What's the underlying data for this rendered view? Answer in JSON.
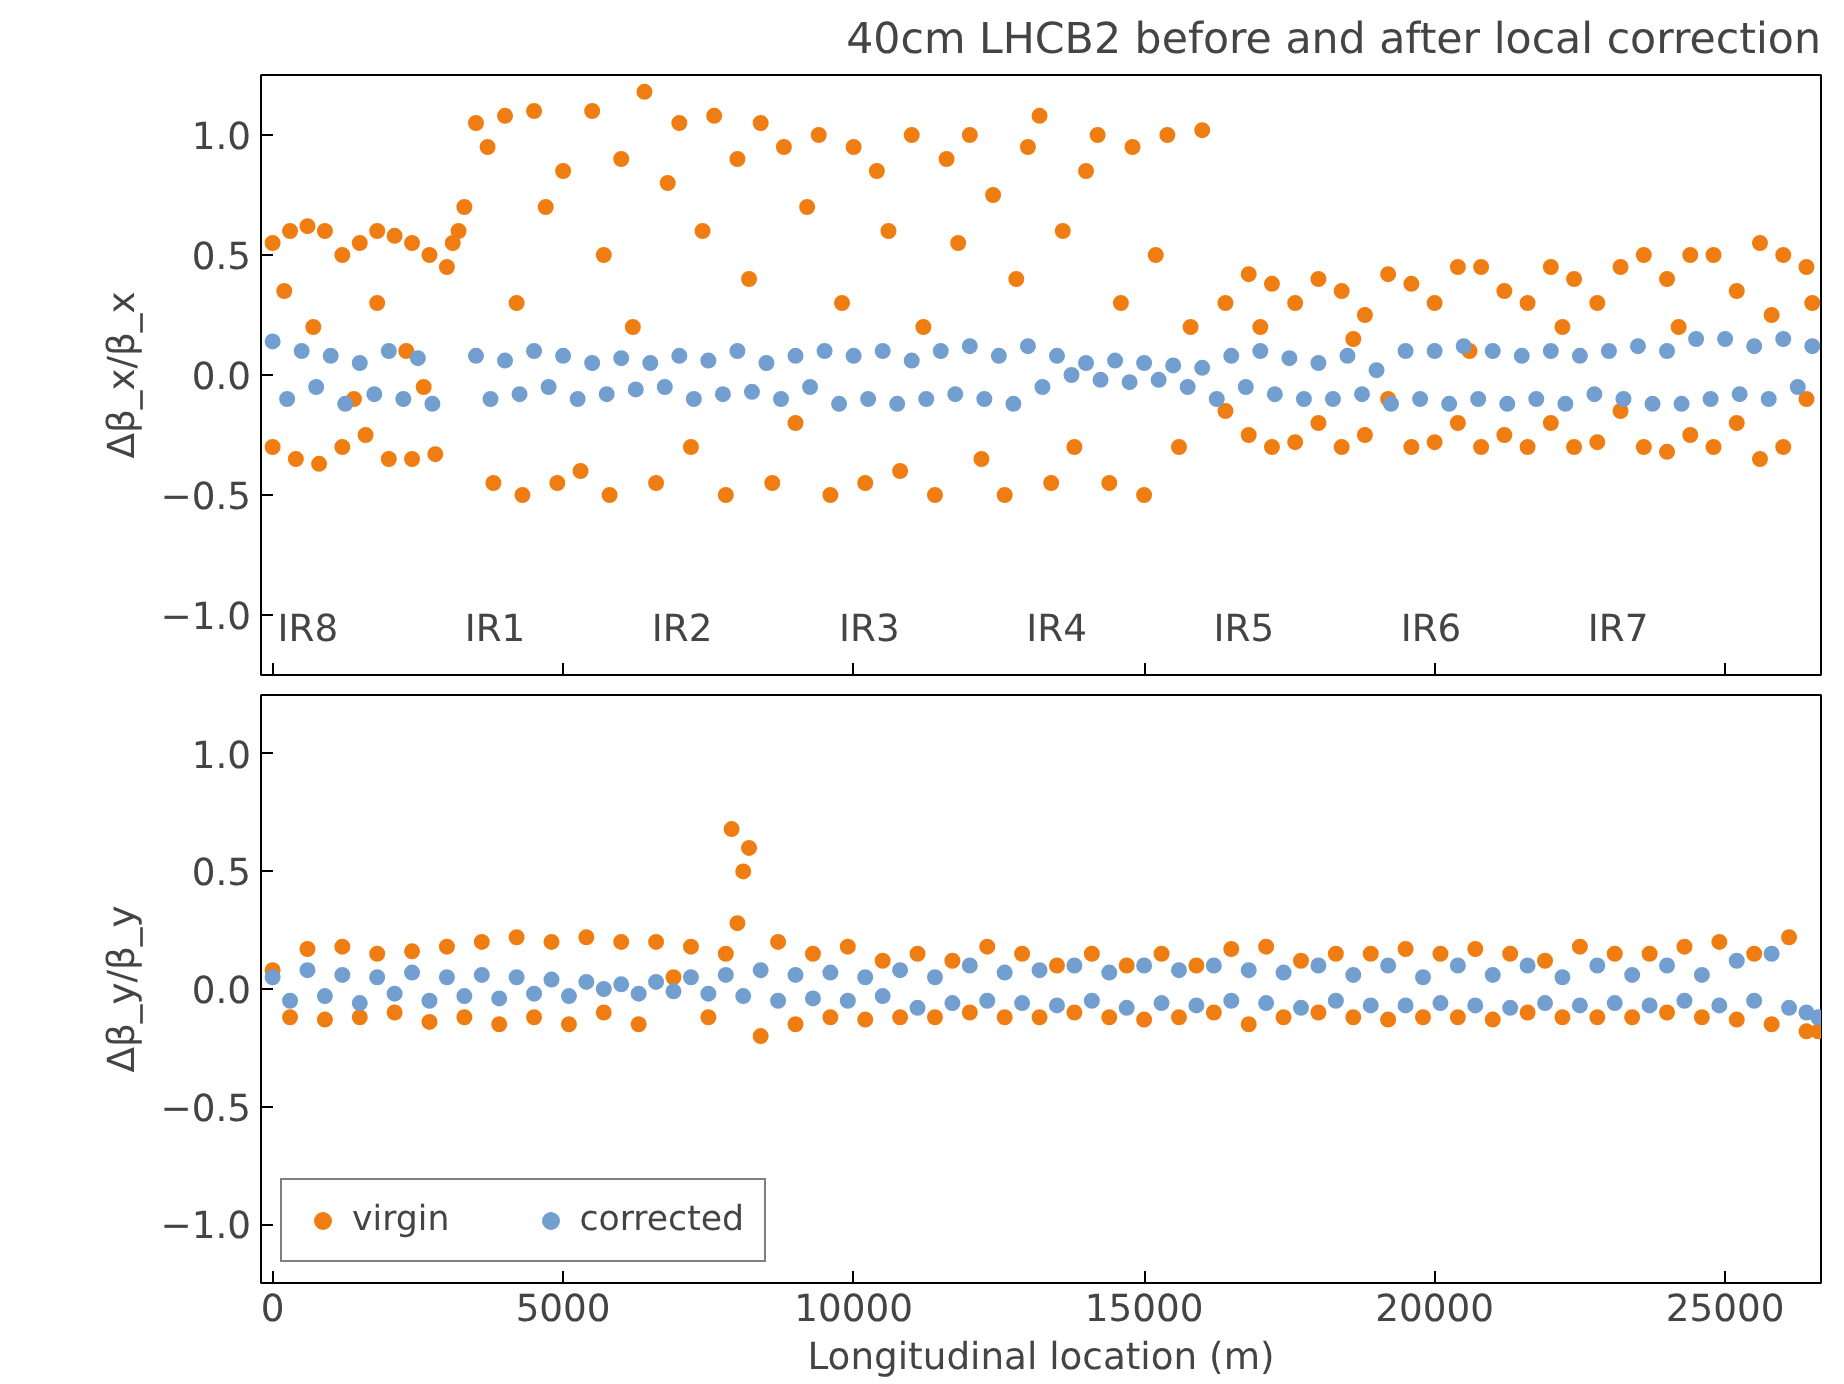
{
  "chart_data": [
    {
      "type": "scatter",
      "title": "40cm LHCB2 before and after local correction",
      "ylabel": "Δβ_x/β_x",
      "xlim": [
        -200,
        26650
      ],
      "ylim": [
        -1.25,
        1.25
      ],
      "xticks": [
        0,
        5000,
        10000,
        15000,
        20000,
        25000
      ],
      "tick_labels": "y",
      "annotations": [
        "IR8",
        "IR1",
        "IR2",
        "IR3",
        "IR4",
        "IR5",
        "IR6",
        "IR7"
      ],
      "yticks": [
        {
          "value": -1.0,
          "label": "−1.0"
        },
        {
          "value": -0.5,
          "label": "−0.5"
        },
        {
          "value": 0.0,
          "label": "0.0"
        },
        0.5,
        {
          "value": 1.0,
          "label": "1.0"
        }
      ],
      "grid": false,
      "legend": false,
      "marker": "circle",
      "series": [
        {
          "color": "#ef7d12",
          "x": [
            0,
            0,
            200,
            300,
            400,
            600,
            700,
            800,
            900,
            1200,
            1200,
            1400,
            1500,
            1600,
            1800,
            1800,
            2000,
            2100,
            2300,
            2400,
            2400,
            2600,
            2700,
            2800,
            3000,
            3100,
            3200,
            3300,
            3500,
            3700,
            3800,
            4000,
            4200,
            4300,
            4500,
            4700,
            4900,
            5000,
            5300,
            5500,
            5700,
            5800,
            6000,
            6200,
            6400,
            6600,
            6800,
            7000,
            7200,
            7400,
            7600,
            7800,
            8000,
            8200,
            8400,
            8600,
            8800,
            9000,
            9200,
            9400,
            9600,
            9800,
            10000,
            10200,
            10400,
            10600,
            10800,
            11000,
            11200,
            11400,
            11600,
            11800,
            12000,
            12200,
            12400,
            12600,
            12800,
            13000,
            13200,
            13400,
            13600,
            13800,
            14000,
            14200,
            14400,
            14600,
            14800,
            15000,
            15200,
            15400,
            15600,
            15800,
            16000,
            16400,
            16400,
            16800,
            16800,
            17000,
            17200,
            17200,
            17600,
            17600,
            18000,
            18000,
            18400,
            18400,
            18600,
            18800,
            18800,
            19200,
            19200,
            19600,
            19600,
            20000,
            20000,
            20400,
            20400,
            20600,
            20800,
            20800,
            21200,
            21200,
            21600,
            21600,
            22000,
            22000,
            22200,
            22400,
            22400,
            22800,
            22800,
            23200,
            23200,
            23600,
            23600,
            24000,
            24000,
            24200,
            24400,
            24400,
            24800,
            24800,
            25200,
            25200,
            25600,
            25600,
            25800,
            26000,
            26000,
            26400,
            26400,
            26500
          ],
          "values": [
            0.55,
            -0.3,
            0.35,
            0.6,
            -0.35,
            0.62,
            0.2,
            -0.37,
            0.6,
            0.5,
            -0.3,
            -0.1,
            0.55,
            -0.25,
            0.6,
            0.3,
            -0.35,
            0.58,
            0.1,
            0.55,
            -0.35,
            -0.05,
            0.5,
            -0.33,
            0.45,
            0.55,
            0.6,
            0.7,
            1.05,
            0.95,
            -0.45,
            1.08,
            0.3,
            -0.5,
            1.1,
            0.7,
            -0.45,
            0.85,
            -0.4,
            1.1,
            0.5,
            -0.5,
            0.9,
            0.2,
            1.18,
            -0.45,
            0.8,
            1.05,
            -0.3,
            0.6,
            1.08,
            -0.5,
            0.9,
            0.4,
            1.05,
            -0.45,
            0.95,
            -0.2,
            0.7,
            1.0,
            -0.5,
            0.3,
            0.95,
            -0.45,
            0.85,
            0.6,
            -0.4,
            1.0,
            0.2,
            -0.5,
            0.9,
            0.55,
            1.0,
            -0.35,
            0.75,
            -0.5,
            0.4,
            0.95,
            1.08,
            -0.45,
            0.6,
            -0.3,
            0.85,
            1.0,
            -0.45,
            0.3,
            0.95,
            -0.5,
            0.5,
            1.0,
            -0.3,
            0.2,
            1.02,
            0.3,
            -0.15,
            0.42,
            -0.25,
            0.2,
            0.38,
            -0.3,
            0.3,
            -0.28,
            0.4,
            -0.2,
            0.35,
            -0.3,
            0.15,
            0.25,
            -0.25,
            0.42,
            -0.1,
            0.38,
            -0.3,
            0.3,
            -0.28,
            0.45,
            -0.2,
            0.1,
            0.45,
            -0.3,
            0.35,
            -0.25,
            0.3,
            -0.3,
            0.45,
            -0.2,
            0.2,
            0.4,
            -0.3,
            0.3,
            -0.28,
            0.45,
            -0.15,
            0.5,
            -0.3,
            0.4,
            -0.32,
            0.2,
            0.5,
            -0.25,
            0.5,
            -0.3,
            0.35,
            -0.2,
            0.55,
            -0.35,
            0.25,
            0.5,
            -0.3,
            0.45,
            -0.1,
            0.3
          ]
        },
        {
          "color": "#729fcf",
          "x": [
            0,
            250,
            500,
            750,
            1000,
            1250,
            1500,
            1750,
            2000,
            2250,
            2500,
            2750,
            3500,
            3750,
            4000,
            4250,
            4500,
            4750,
            5000,
            5250,
            5500,
            5750,
            6000,
            6250,
            6500,
            6750,
            7000,
            7250,
            7500,
            7750,
            8000,
            8250,
            8500,
            8750,
            9000,
            9250,
            9500,
            9750,
            10000,
            10250,
            10500,
            10750,
            11000,
            11250,
            11500,
            11750,
            12000,
            12250,
            12500,
            12750,
            13000,
            13250,
            13500,
            13750,
            14000,
            14250,
            14500,
            14750,
            15000,
            15250,
            15500,
            15750,
            16000,
            16250,
            16500,
            16750,
            17000,
            17250,
            17500,
            17750,
            18000,
            18250,
            18500,
            18750,
            19000,
            19250,
            19500,
            19750,
            20000,
            20250,
            20500,
            20750,
            21000,
            21250,
            21500,
            21750,
            22000,
            22250,
            22500,
            22750,
            23000,
            23250,
            23500,
            23750,
            24000,
            24250,
            24500,
            24750,
            25000,
            25250,
            25500,
            25750,
            26000,
            26250,
            26500
          ],
          "values": [
            0.14,
            -0.1,
            0.1,
            -0.05,
            0.08,
            -0.12,
            0.05,
            -0.08,
            0.1,
            -0.1,
            0.07,
            -0.12,
            0.08,
            -0.1,
            0.06,
            -0.08,
            0.1,
            -0.05,
            0.08,
            -0.1,
            0.05,
            -0.08,
            0.07,
            -0.06,
            0.05,
            -0.05,
            0.08,
            -0.1,
            0.06,
            -0.08,
            0.1,
            -0.07,
            0.05,
            -0.1,
            0.08,
            -0.05,
            0.1,
            -0.12,
            0.08,
            -0.1,
            0.1,
            -0.12,
            0.06,
            -0.1,
            0.1,
            -0.08,
            0.12,
            -0.1,
            0.08,
            -0.12,
            0.12,
            -0.05,
            0.08,
            0.0,
            0.05,
            -0.02,
            0.06,
            -0.03,
            0.05,
            -0.02,
            0.04,
            -0.05,
            0.03,
            -0.1,
            0.08,
            -0.05,
            0.1,
            -0.08,
            0.07,
            -0.1,
            0.05,
            -0.1,
            0.08,
            -0.08,
            0.02,
            -0.12,
            0.1,
            -0.1,
            0.1,
            -0.12,
            0.12,
            -0.1,
            0.1,
            -0.12,
            0.08,
            -0.1,
            0.1,
            -0.12,
            0.08,
            -0.08,
            0.1,
            -0.1,
            0.12,
            -0.12,
            0.1,
            -0.12,
            0.15,
            -0.1,
            0.15,
            -0.08,
            0.12,
            -0.1,
            0.15,
            -0.05,
            0.12
          ]
        }
      ]
    },
    {
      "type": "scatter",
      "xlabel": "Longitudinal location (m)",
      "ylabel": "Δβ_y/β_y",
      "xlim": [
        -200,
        26650
      ],
      "ylim": [
        -1.25,
        1.25
      ],
      "xticks": [
        0,
        5000,
        10000,
        15000,
        20000,
        25000
      ],
      "yticks": [
        {
          "value": -1.0,
          "label": "−1.0"
        },
        {
          "value": -0.5,
          "label": "−0.5"
        },
        {
          "value": 0.0,
          "label": "0.0"
        },
        0.5,
        {
          "value": 1.0,
          "label": "1.0"
        }
      ],
      "grid": false,
      "legend": "bottom left",
      "marker": "circle",
      "series": [
        {
          "name": "virgin",
          "color": "#ef7d12",
          "x": [
            0,
            300,
            600,
            900,
            1200,
            1500,
            1800,
            2100,
            2400,
            2700,
            3000,
            3300,
            3600,
            3900,
            4200,
            4500,
            4800,
            5100,
            5400,
            5700,
            6000,
            6300,
            6600,
            6900,
            7200,
            7500,
            7800,
            7900,
            8000,
            8100,
            8200,
            8400,
            8700,
            9000,
            9300,
            9600,
            9900,
            10200,
            10500,
            10800,
            11100,
            11400,
            11700,
            12000,
            12300,
            12600,
            12900,
            13200,
            13500,
            13800,
            14100,
            14400,
            14700,
            15000,
            15300,
            15600,
            15900,
            16200,
            16500,
            16800,
            17100,
            17400,
            17700,
            18000,
            18300,
            18600,
            18900,
            19200,
            19500,
            19800,
            20100,
            20400,
            20700,
            21000,
            21300,
            21600,
            21900,
            22200,
            22500,
            22800,
            23100,
            23400,
            23700,
            24000,
            24300,
            24600,
            24900,
            25200,
            25500,
            25800,
            26100,
            26400,
            26600
          ],
          "values": [
            0.08,
            -0.12,
            0.17,
            -0.13,
            0.18,
            -0.12,
            0.15,
            -0.1,
            0.16,
            -0.14,
            0.18,
            -0.12,
            0.2,
            -0.15,
            0.22,
            -0.12,
            0.2,
            -0.15,
            0.22,
            -0.1,
            0.2,
            -0.15,
            0.2,
            0.05,
            0.18,
            -0.12,
            0.15,
            0.68,
            0.28,
            0.5,
            0.6,
            -0.2,
            0.2,
            -0.15,
            0.15,
            -0.12,
            0.18,
            -0.13,
            0.12,
            -0.12,
            0.15,
            -0.12,
            0.12,
            -0.1,
            0.18,
            -0.12,
            0.15,
            -0.12,
            0.1,
            -0.1,
            0.15,
            -0.12,
            0.1,
            -0.13,
            0.15,
            -0.12,
            0.1,
            -0.1,
            0.17,
            -0.15,
            0.18,
            -0.12,
            0.12,
            -0.1,
            0.15,
            -0.12,
            0.15,
            -0.13,
            0.17,
            -0.12,
            0.15,
            -0.12,
            0.17,
            -0.13,
            0.15,
            -0.1,
            0.12,
            -0.12,
            0.18,
            -0.12,
            0.15,
            -0.12,
            0.15,
            -0.1,
            0.18,
            -0.12,
            0.2,
            -0.13,
            0.15,
            -0.15,
            0.22,
            -0.18,
            -0.18
          ]
        },
        {
          "name": "corrected",
          "color": "#729fcf",
          "x": [
            0,
            300,
            600,
            900,
            1200,
            1500,
            1800,
            2100,
            2400,
            2700,
            3000,
            3300,
            3600,
            3900,
            4200,
            4500,
            4800,
            5100,
            5400,
            5700,
            6000,
            6300,
            6600,
            6900,
            7200,
            7500,
            7800,
            8100,
            8400,
            8700,
            9000,
            9300,
            9600,
            9900,
            10200,
            10500,
            10800,
            11100,
            11400,
            11700,
            12000,
            12300,
            12600,
            12900,
            13200,
            13500,
            13800,
            14100,
            14400,
            14700,
            15000,
            15300,
            15600,
            15900,
            16200,
            16500,
            16800,
            17100,
            17400,
            17700,
            18000,
            18300,
            18600,
            18900,
            19200,
            19500,
            19800,
            20100,
            20400,
            20700,
            21000,
            21300,
            21600,
            21900,
            22200,
            22500,
            22800,
            23100,
            23400,
            23700,
            24000,
            24300,
            24600,
            24900,
            25200,
            25500,
            25800,
            26100,
            26400,
            26600
          ],
          "values": [
            0.05,
            -0.05,
            0.08,
            -0.03,
            0.06,
            -0.06,
            0.05,
            -0.02,
            0.07,
            -0.05,
            0.05,
            -0.03,
            0.06,
            -0.04,
            0.05,
            -0.02,
            0.04,
            -0.03,
            0.03,
            0.0,
            0.02,
            -0.02,
            0.03,
            -0.01,
            0.05,
            -0.02,
            0.06,
            -0.03,
            0.08,
            -0.05,
            0.06,
            -0.04,
            0.07,
            -0.05,
            0.05,
            -0.03,
            0.08,
            -0.08,
            0.05,
            -0.06,
            0.1,
            -0.05,
            0.07,
            -0.06,
            0.08,
            -0.07,
            0.1,
            -0.05,
            0.07,
            -0.08,
            0.1,
            -0.06,
            0.08,
            -0.07,
            0.1,
            -0.05,
            0.08,
            -0.06,
            0.07,
            -0.08,
            0.1,
            -0.05,
            0.06,
            -0.07,
            0.1,
            -0.07,
            0.05,
            -0.06,
            0.1,
            -0.07,
            0.06,
            -0.08,
            0.1,
            -0.06,
            0.05,
            -0.07,
            0.1,
            -0.06,
            0.06,
            -0.07,
            0.1,
            -0.05,
            0.06,
            -0.07,
            0.12,
            -0.05,
            0.15,
            -0.08,
            -0.1,
            -0.12
          ]
        }
      ]
    }
  ]
}
